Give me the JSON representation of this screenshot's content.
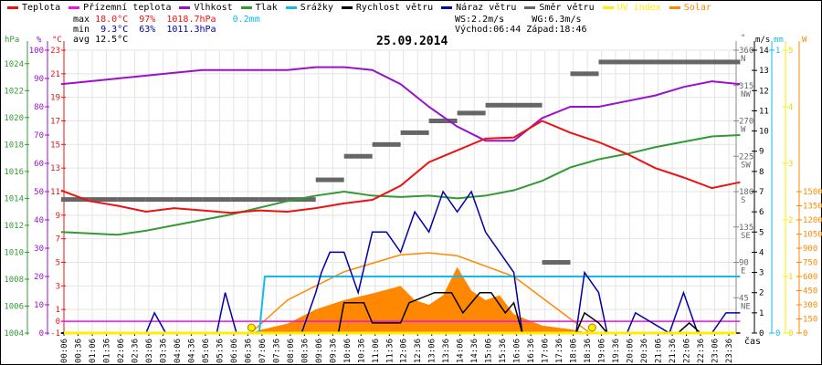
{
  "legend": [
    {
      "label": "Teplota",
      "color": "#ee1111"
    },
    {
      "label": "Přízemní teplota",
      "color": "#ee11ee"
    },
    {
      "label": "Vlhkost",
      "color": "#9911cc"
    },
    {
      "label": "Tlak",
      "color": "#339933"
    },
    {
      "label": "Srážky",
      "color": "#11bbee"
    },
    {
      "label": "Rychlost větru",
      "color": "#000000"
    },
    {
      "label": "Náraz větru",
      "color": "#0000aa"
    },
    {
      "label": "Směr větru",
      "color": "#666666"
    },
    {
      "label": "UV index",
      "color": "#ffee00"
    },
    {
      "label": "Solar",
      "color": "#ff8800"
    }
  ],
  "stats": {
    "max_label": "max",
    "max_temp": "18.0°C",
    "max_hum": "97%",
    "max_press": "1018.7hPa",
    "max_rain": "0.2mm",
    "min_label": "min",
    "min_temp": "9.3°C",
    "min_hum": "63%",
    "min_press": "1011.3hPa",
    "avg_label": "avg",
    "avg_temp": "12.5°C",
    "ws": "WS:2.2m/s",
    "wg": "WG:6.3m/s",
    "sunrise": "Východ:06:44",
    "sunset": "Západ:18:46"
  },
  "units": {
    "hpa": "hPa",
    "pct": "%",
    "degc": "°C",
    "deg": "°",
    "ms": "m/s",
    "mm": "mm",
    "w": "W",
    "time": "čas"
  },
  "colors": {
    "temp": "#ee1111",
    "ground": "#ee11ee",
    "hum": "#9911cc",
    "press": "#339933",
    "rain": "#11bbee",
    "wind": "#000000",
    "gust": "#0000aa",
    "dir": "#666666",
    "uv": "#ffee00",
    "solar": "#ff8800",
    "grid": "#e4e4e4"
  },
  "chart_data": {
    "type": "line",
    "title": "25.09.2014",
    "xlabel": "čas",
    "x_ticks": [
      "00:06",
      "00:36",
      "01:06",
      "01:36",
      "02:06",
      "02:36",
      "03:06",
      "03:36",
      "04:06",
      "04:36",
      "05:06",
      "05:36",
      "06:06",
      "06:36",
      "07:06",
      "07:36",
      "08:06",
      "08:36",
      "09:06",
      "09:36",
      "10:06",
      "10:36",
      "11:06",
      "11:36",
      "12:06",
      "12:36",
      "13:06",
      "13:36",
      "14:06",
      "14:36",
      "15:06",
      "15:36",
      "16:06",
      "16:36",
      "17:06",
      "17:36",
      "18:06",
      "18:36",
      "19:06",
      "19:36",
      "20:06",
      "20:36",
      "21:06",
      "21:36",
      "22:06",
      "22:36",
      "23:06",
      "23:36"
    ],
    "axes": {
      "pressure_hpa": {
        "range": [
          1004,
          1025
        ],
        "ticks": [
          "1004",
          "1006",
          "1008",
          "1010",
          "1012",
          "1014",
          "1016",
          "1018",
          "1020",
          "1022",
          "1024"
        ]
      },
      "humidity_pct": {
        "range": [
          0,
          100
        ],
        "ticks": [
          "0",
          "10",
          "20",
          "30",
          "40",
          "50",
          "60",
          "70",
          "80",
          "90",
          "100"
        ]
      },
      "temp_c": {
        "range": [
          -1,
          23
        ],
        "ticks": [
          "-1",
          "0",
          "1",
          "3",
          "5",
          "7",
          "9",
          "11",
          "13",
          "15",
          "17",
          "19",
          "21",
          "23"
        ]
      },
      "direction_deg": {
        "range": [
          0,
          360
        ],
        "ticks": [
          {
            "v": "45",
            "d": "NE"
          },
          {
            "v": "90",
            "d": "E"
          },
          {
            "v": "135",
            "d": "SE"
          },
          {
            "v": "180",
            "d": "S"
          },
          {
            "v": "225",
            "d": "SW"
          },
          {
            "v": "270",
            "d": "W"
          },
          {
            "v": "315",
            "d": "NW"
          },
          {
            "v": "360",
            "d": "N"
          }
        ]
      },
      "wind_ms": {
        "range": [
          0,
          14
        ],
        "ticks": [
          "0",
          "1",
          "2",
          "3",
          "4",
          "5",
          "6",
          "7",
          "8",
          "9",
          "10",
          "11",
          "12",
          "13",
          "14"
        ]
      },
      "rain_mm": {
        "range": [
          0,
          1
        ],
        "ticks": [
          "0",
          "1"
        ]
      },
      "uv": {
        "range": [
          0,
          5
        ],
        "ticks": [
          "0",
          "1",
          "2",
          "3",
          "4",
          "5"
        ]
      },
      "solar_w": {
        "range": [
          0,
          1500
        ],
        "ticks": [
          "0",
          "150",
          "300",
          "450",
          "600",
          "750",
          "900",
          "1050",
          "1200",
          "1350",
          "1500"
        ]
      }
    },
    "series": [
      {
        "name": "Teplota",
        "unit": "°C",
        "x": [
          0,
          1,
          2,
          3,
          4,
          5,
          6,
          7,
          8,
          9,
          10,
          11,
          12,
          13,
          14,
          15,
          16,
          17,
          18,
          19,
          20,
          21,
          22,
          23,
          24
        ],
        "values": [
          11.1,
          10.2,
          9.8,
          9.3,
          9.6,
          9.4,
          9.2,
          9.4,
          9.3,
          9.6,
          10.0,
          10.3,
          11.5,
          13.5,
          14.5,
          15.5,
          15.6,
          17.0,
          16.0,
          15.2,
          14.2,
          13.0,
          12.2,
          11.3,
          11.8
        ]
      },
      {
        "name": "Vlhkost",
        "unit": "%",
        "x": [
          0,
          1,
          2,
          3,
          4,
          5,
          6,
          7,
          8,
          9,
          10,
          11,
          12,
          13,
          14,
          15,
          16,
          17,
          18,
          19,
          20,
          21,
          22,
          23,
          24
        ],
        "values": [
          88,
          89,
          90,
          91,
          92,
          93,
          93,
          93,
          93,
          94,
          94,
          93,
          88,
          80,
          73,
          68,
          68,
          76,
          80,
          80,
          82,
          84,
          87,
          89,
          88
        ]
      },
      {
        "name": "Tlak",
        "unit": "hPa",
        "x": [
          0,
          1,
          2,
          3,
          4,
          5,
          6,
          7,
          8,
          9,
          10,
          11,
          12,
          13,
          14,
          15,
          16,
          17,
          18,
          19,
          20,
          21,
          22,
          23,
          24
        ],
        "values": [
          1011.5,
          1011.4,
          1011.3,
          1011.6,
          1012.0,
          1012.4,
          1012.8,
          1013.3,
          1013.8,
          1014.2,
          1014.5,
          1014.2,
          1014.1,
          1014.2,
          1014.0,
          1014.2,
          1014.6,
          1015.3,
          1016.3,
          1016.9,
          1017.3,
          1017.8,
          1018.2,
          1018.6,
          1018.7
        ]
      },
      {
        "name": "Přízemní teplota",
        "unit": "°C",
        "x": [
          0,
          24
        ],
        "values": [
          0,
          0
        ]
      },
      {
        "name": "Srážky",
        "unit": "mm",
        "x": [
          0,
          7.0,
          7.2,
          24
        ],
        "values": [
          0,
          0,
          0.2,
          0.2
        ]
      },
      {
        "name": "Rychlost větru",
        "unit": "m/s",
        "x": [
          0,
          9.8,
          10,
          10.7,
          11,
          12,
          12.3,
          13.2,
          13.8,
          14.2,
          14.8,
          15.2,
          15.7,
          16,
          16.3,
          18.2,
          18.5,
          19,
          19.3,
          21.8,
          22.2,
          22.6,
          24
        ],
        "values": [
          0,
          0,
          1.5,
          1.5,
          0.5,
          0.5,
          1.5,
          2,
          2,
          1,
          2,
          2,
          1,
          1.5,
          0,
          0,
          1,
          0.5,
          0,
          0,
          0.5,
          0,
          0
        ]
      },
      {
        "name": "Náraz větru",
        "unit": "m/s",
        "x": [
          0,
          3,
          3.3,
          3.7,
          4,
          5.5,
          5.8,
          6.2,
          8.5,
          9,
          9.2,
          9.5,
          10,
          10.5,
          11,
          11.5,
          12,
          12.5,
          13,
          13.5,
          14,
          14.5,
          15,
          15.5,
          16,
          16.3,
          17,
          18.2,
          18.5,
          19,
          19.3,
          20,
          20.3,
          21.5,
          22,
          22.5,
          23,
          23.5,
          24
        ],
        "values": [
          0,
          0,
          1,
          0,
          0,
          0,
          2,
          0,
          0,
          2,
          3,
          4,
          4,
          2,
          5,
          5,
          4,
          6,
          5,
          7,
          6,
          7,
          5,
          4,
          3,
          0,
          0,
          0,
          3,
          2,
          0,
          0,
          1,
          0,
          2,
          0,
          0,
          1,
          1
        ]
      },
      {
        "name": "Směr větru",
        "unit": "°",
        "x": [
          0,
          1,
          2,
          3,
          4,
          5,
          6,
          7,
          8,
          9,
          10,
          11,
          12,
          13,
          14,
          15,
          16,
          17,
          18,
          19,
          20,
          21,
          22,
          23,
          24
        ],
        "values": [
          170,
          170,
          170,
          170,
          170,
          170,
          170,
          170,
          170,
          195,
          225,
          240,
          255,
          270,
          280,
          290,
          290,
          90,
          330,
          345,
          345,
          345,
          345,
          345,
          345
        ]
      },
      {
        "name": "UV index",
        "unit": "",
        "x": [
          0,
          24
        ],
        "values": [
          0,
          0
        ]
      },
      {
        "name": "Solar",
        "unit": "W",
        "x": [
          0,
          6.7,
          7,
          8,
          9,
          10,
          11,
          12,
          12.5,
          13,
          13.5,
          14,
          14.5,
          15,
          15.5,
          16,
          17,
          18,
          18.7,
          24
        ],
        "values": [
          0,
          0,
          30,
          100,
          250,
          350,
          420,
          500,
          350,
          300,
          400,
          700,
          450,
          350,
          400,
          200,
          80,
          40,
          0,
          0
        ]
      },
      {
        "name": "Solar max",
        "unit": "W",
        "x": [
          6.7,
          8,
          10,
          12,
          13,
          14,
          16,
          18,
          18.7
        ],
        "values": [
          0,
          350,
          650,
          830,
          850,
          820,
          600,
          150,
          0
        ]
      }
    ],
    "annotations": [
      "sunrise marker 06:44",
      "sunset marker 18:46"
    ]
  }
}
